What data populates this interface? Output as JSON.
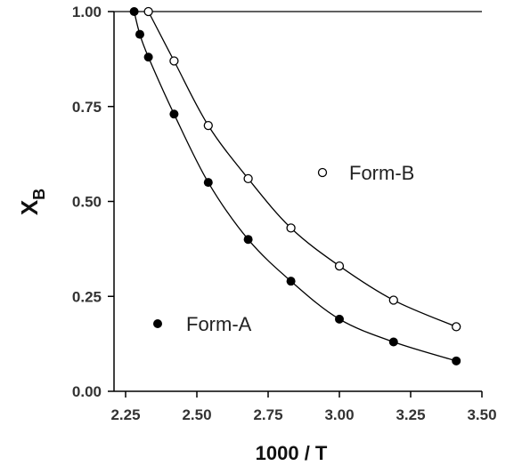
{
  "chart_data": {
    "type": "scatter",
    "xlabel": "1000 / T",
    "ylabel_main": "X",
    "ylabel_sub": "B",
    "xlim": [
      2.2,
      3.5
    ],
    "ylim": [
      0.0,
      1.0
    ],
    "x_ticks": [
      "2.25",
      "2.50",
      "2.75",
      "3.00",
      "3.25",
      "3.50"
    ],
    "x_tick_values": [
      2.25,
      2.5,
      2.75,
      3.0,
      3.25,
      3.5
    ],
    "y_ticks": [
      "0.00",
      "0.25",
      "0.50",
      "0.75",
      "1.00"
    ],
    "y_tick_values": [
      0.0,
      0.25,
      0.5,
      0.75,
      1.0
    ],
    "grid": false,
    "reference_line_y": 1.0,
    "series": [
      {
        "name": "Form-A",
        "marker": "filled-circle",
        "color": "#000000",
        "x": [
          2.28,
          2.3,
          2.33,
          2.42,
          2.54,
          2.68,
          2.83,
          3.0,
          3.19,
          3.41
        ],
        "y": [
          1.0,
          0.94,
          0.88,
          0.73,
          0.55,
          0.4,
          0.29,
          0.19,
          0.13,
          0.08
        ]
      },
      {
        "name": "Form-B",
        "marker": "open-circle",
        "color": "#000000",
        "x": [
          2.33,
          2.42,
          2.54,
          2.68,
          2.83,
          3.0,
          3.19,
          3.41
        ],
        "y": [
          1.0,
          0.87,
          0.7,
          0.56,
          0.43,
          0.33,
          0.24,
          0.17
        ]
      }
    ],
    "legend": [
      {
        "label": "Form-B",
        "marker": "open-circle",
        "placement": "upper-right"
      },
      {
        "label": "Form-A",
        "marker": "filled-circle",
        "placement": "lower-left"
      }
    ]
  }
}
